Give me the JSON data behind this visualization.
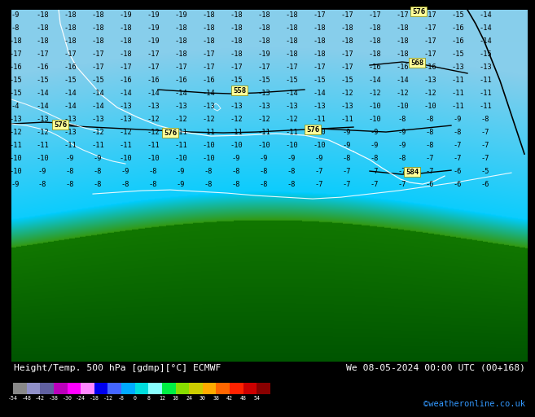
{
  "title_left": "Height/Temp. 500 hPa [gdmp][°C] ECMWF",
  "title_right": "We 08-05-2024 00:00 UTC (00+168)",
  "credit": "©weatheronline.co.uk",
  "colorbar_values": [
    -54,
    -48,
    -42,
    -38,
    -30,
    -24,
    -18,
    -12,
    -8,
    0,
    8,
    12,
    18,
    24,
    30,
    38,
    42,
    48,
    54
  ],
  "colorbar_colors": [
    "#888888",
    "#9090c8",
    "#6060a0",
    "#bb00bb",
    "#ff00ff",
    "#ff88ff",
    "#0000ee",
    "#4466ff",
    "#00aaff",
    "#00dddd",
    "#88ffff",
    "#00ee44",
    "#88dd00",
    "#cccc00",
    "#ffaa00",
    "#ff6600",
    "#ff2200",
    "#cc0000",
    "#880000"
  ],
  "fig_width": 6.34,
  "fig_height": 4.9
}
